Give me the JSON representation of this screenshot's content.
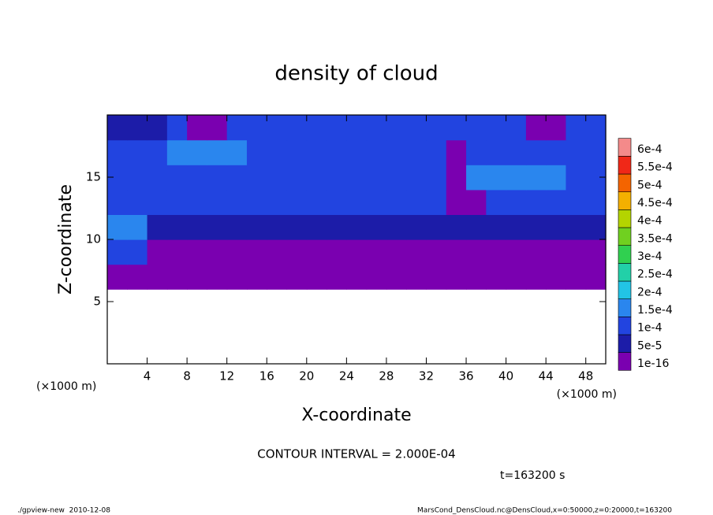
{
  "chart_data": {
    "type": "contour",
    "title": "density of cloud",
    "xlabel": "X-coordinate",
    "ylabel": "Z-coordinate",
    "xunit": "(×1000 m)",
    "yunit": "(×1000 m)",
    "xlim": [
      0,
      50
    ],
    "ylim": [
      0,
      20
    ],
    "xticks": [
      4,
      8,
      12,
      16,
      20,
      24,
      28,
      32,
      36,
      40,
      44,
      48
    ],
    "yticks": [
      5,
      10,
      15
    ],
    "x": [
      1,
      3,
      5,
      7,
      9,
      11,
      13,
      15,
      17,
      19,
      21,
      23,
      25,
      27,
      29,
      31,
      33,
      35,
      37,
      39,
      41,
      43,
      45,
      47,
      49
    ],
    "z": [
      1,
      3,
      5,
      7,
      9,
      11,
      13,
      15,
      17,
      19
    ],
    "values": [
      [
        null,
        null,
        null,
        null,
        null,
        null,
        null,
        null,
        null,
        null,
        null,
        null,
        null,
        null,
        null,
        null,
        null,
        null,
        null,
        null,
        null,
        null,
        null,
        null,
        null
      ],
      [
        null,
        null,
        null,
        null,
        null,
        null,
        null,
        null,
        null,
        null,
        null,
        null,
        null,
        null,
        null,
        null,
        null,
        null,
        null,
        null,
        null,
        null,
        null,
        null,
        null
      ],
      [
        null,
        null,
        null,
        null,
        null,
        null,
        null,
        null,
        null,
        null,
        null,
        null,
        null,
        null,
        null,
        null,
        null,
        null,
        null,
        null,
        null,
        null,
        null,
        null,
        null
      ],
      [
        1e-16,
        1e-16,
        1e-16,
        1e-16,
        1e-16,
        1e-16,
        1e-16,
        1e-16,
        1e-16,
        1e-16,
        1e-16,
        1e-16,
        1e-16,
        1e-16,
        1e-16,
        1e-16,
        1e-16,
        1e-16,
        1e-16,
        1e-16,
        1e-16,
        1e-16,
        1e-16,
        1e-16,
        1e-16
      ],
      [
        0.0001,
        0.0001,
        1e-16,
        1e-16,
        1e-16,
        1e-16,
        1e-16,
        1e-16,
        1e-16,
        1e-16,
        1e-16,
        1e-16,
        1e-16,
        1e-16,
        1e-16,
        1e-16,
        1e-16,
        1e-16,
        1e-16,
        1e-16,
        1e-16,
        1e-16,
        1e-16,
        1e-16,
        1e-16
      ],
      [
        0.00015,
        0.00015,
        5e-05,
        5e-05,
        5e-05,
        5e-05,
        5e-05,
        5e-05,
        5e-05,
        5e-05,
        5e-05,
        5e-05,
        5e-05,
        5e-05,
        5e-05,
        5e-05,
        5e-05,
        5e-05,
        5e-05,
        5e-05,
        5e-05,
        5e-05,
        5e-05,
        5e-05,
        5e-05
      ],
      [
        0.0001,
        0.0001,
        0.0001,
        0.0001,
        0.0001,
        0.0001,
        0.0001,
        0.0001,
        0.0001,
        0.0001,
        0.0001,
        0.0001,
        0.0001,
        0.0001,
        0.0001,
        0.0001,
        0.0001,
        1e-16,
        1e-16,
        0.0001,
        0.0001,
        0.0001,
        0.0001,
        0.0001,
        0.0001
      ],
      [
        0.0001,
        0.0001,
        0.0001,
        0.0001,
        0.0001,
        0.0001,
        0.0001,
        0.0001,
        0.0001,
        0.0001,
        0.0001,
        0.0001,
        0.0001,
        0.0001,
        0.0001,
        0.0001,
        0.0001,
        1e-16,
        0.00015,
        0.00015,
        0.00015,
        0.00015,
        0.00015,
        0.0001,
        0.0001
      ],
      [
        0.0001,
        0.0001,
        0.0001,
        0.00015,
        0.00015,
        0.00015,
        0.00015,
        0.0001,
        0.0001,
        0.0001,
        0.0001,
        0.0001,
        0.0001,
        0.0001,
        0.0001,
        0.0001,
        0.0001,
        1e-16,
        0.0001,
        0.0001,
        0.0001,
        0.0001,
        0.0001,
        0.0001,
        0.0001
      ],
      [
        5e-05,
        5e-05,
        5e-05,
        0.0001,
        1e-16,
        1e-16,
        0.0001,
        0.0001,
        0.0001,
        0.0001,
        0.0001,
        0.0001,
        0.0001,
        0.0001,
        0.0001,
        0.0001,
        0.0001,
        0.0001,
        0.0001,
        0.0001,
        0.0001,
        1e-16,
        1e-16,
        0.0001,
        0.0001
      ]
    ],
    "levels": [
      {
        "value": 1e-16,
        "label": "1e-16"
      },
      {
        "value": 5e-05,
        "label": "5e-5"
      },
      {
        "value": 0.0001,
        "label": "1e-4"
      },
      {
        "value": 0.00015,
        "label": "1.5e-4"
      },
      {
        "value": 0.0002,
        "label": "2e-4"
      },
      {
        "value": 0.00025,
        "label": "2.5e-4"
      },
      {
        "value": 0.0003,
        "label": "3e-4"
      },
      {
        "value": 0.00035,
        "label": "3.5e-4"
      },
      {
        "value": 0.0004,
        "label": "4e-4"
      },
      {
        "value": 0.00045,
        "label": "4.5e-4"
      },
      {
        "value": 0.0005,
        "label": "5e-4"
      },
      {
        "value": 0.00055,
        "label": "5.5e-4"
      },
      {
        "value": 0.0006,
        "label": "6e-4"
      }
    ],
    "colors": [
      "#7a00b0",
      "#1c1ca8",
      "#2244e0",
      "#2a86ee",
      "#22c4e6",
      "#22d0a8",
      "#30d050",
      "#70d020",
      "#b4d400",
      "#f4b000",
      "#f46400",
      "#f02818",
      "#f48a8a"
    ],
    "annotation": "CONTOUR INTERVAL = 2.000E-04",
    "time_label": "t=163200 s",
    "footer_left": "./gpview-new  2010-12-08",
    "footer_right": "MarsCond_DensCloud.nc@DensCloud,x=0:50000,z=0:20000,t=163200"
  }
}
